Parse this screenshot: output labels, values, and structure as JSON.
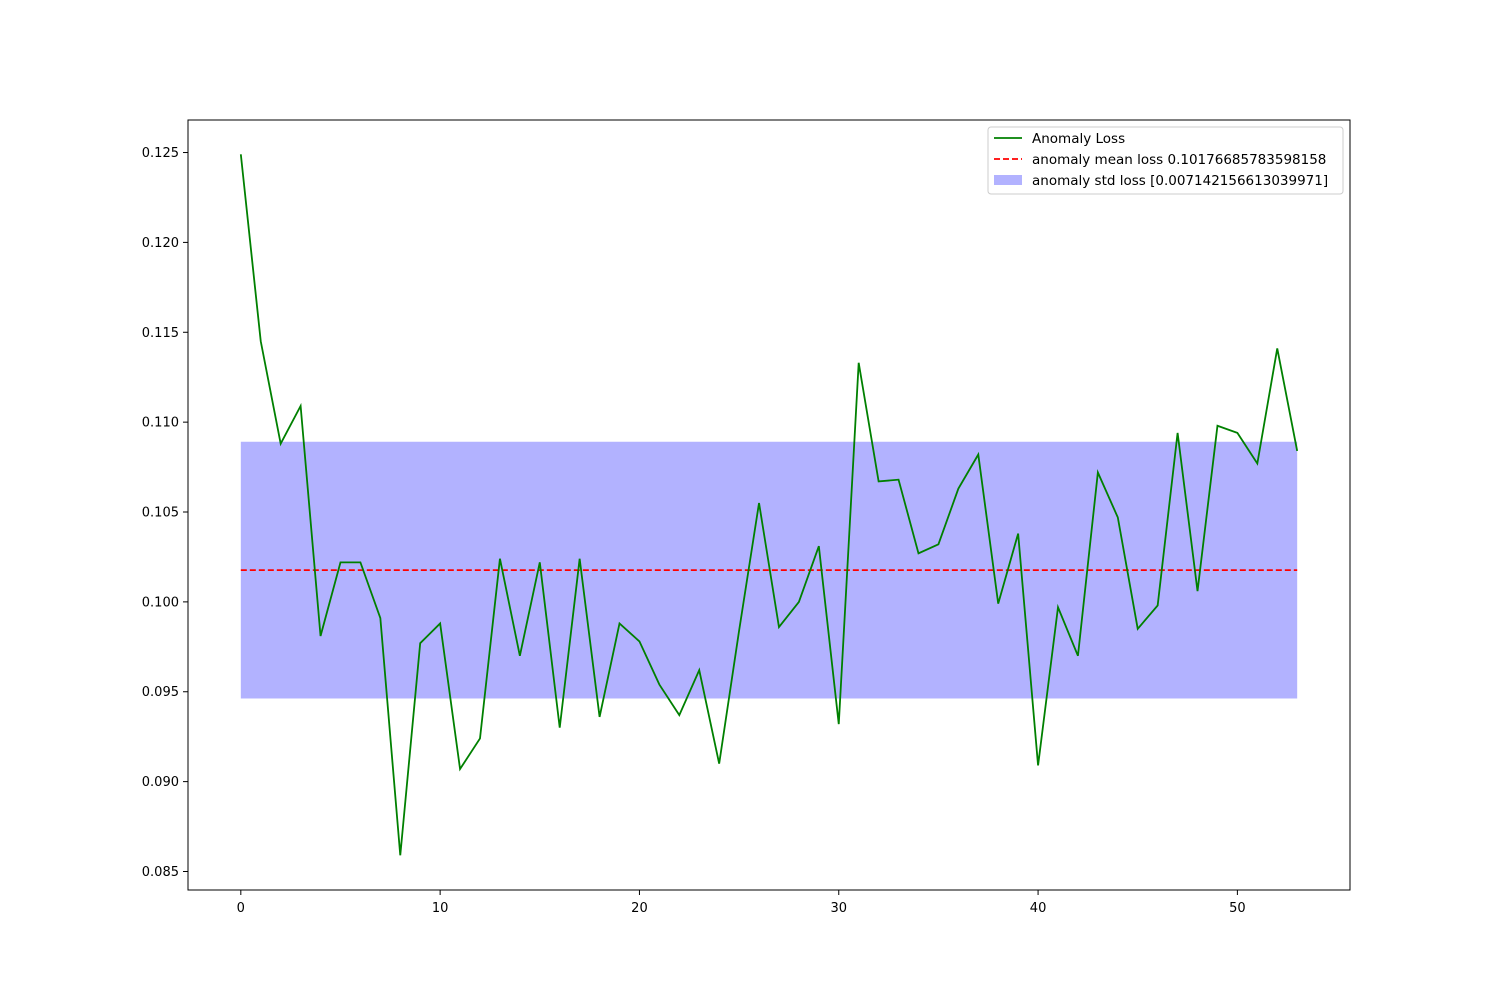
{
  "chart_data": {
    "type": "line",
    "title": "",
    "xlabel": "",
    "ylabel": "",
    "xlim": [
      -2.65,
      55.65
    ],
    "ylim": [
      0.08397,
      0.12681
    ],
    "xticks": [
      0,
      10,
      20,
      30,
      40,
      50
    ],
    "xtick_labels": [
      "0",
      "10",
      "20",
      "30",
      "40",
      "50"
    ],
    "yticks": [
      0.085,
      0.09,
      0.095,
      0.1,
      0.105,
      0.11,
      0.115,
      0.12,
      0.125
    ],
    "ytick_labels": [
      "0.085",
      "0.090",
      "0.095",
      "0.100",
      "0.105",
      "0.110",
      "0.115",
      "0.120",
      "0.125"
    ],
    "grid": false,
    "legend_position": "top-right",
    "series": [
      {
        "name": "Anomaly Loss",
        "kind": "line",
        "color": "#008000",
        "x": [
          0,
          1,
          2,
          3,
          4,
          5,
          6,
          7,
          8,
          9,
          10,
          11,
          12,
          13,
          14,
          15,
          16,
          17,
          18,
          19,
          20,
          21,
          22,
          23,
          24,
          25,
          26,
          27,
          28,
          29,
          30,
          31,
          32,
          33,
          34,
          35,
          36,
          37,
          38,
          39,
          40,
          41,
          42,
          43,
          44,
          45,
          46,
          47,
          48,
          49,
          50,
          51,
          52,
          53
        ],
        "values": [
          0.1249,
          0.1145,
          0.1088,
          0.1109,
          0.0981,
          0.1022,
          0.1022,
          0.0991,
          0.0859,
          0.0977,
          0.0988,
          0.0907,
          0.0924,
          0.1024,
          0.097,
          0.1022,
          0.093,
          0.1024,
          0.0936,
          0.0988,
          0.0978,
          0.0954,
          0.0937,
          0.0962,
          0.091,
          0.0984,
          0.1055,
          0.0986,
          0.1,
          0.1031,
          0.0932,
          0.1133,
          0.1067,
          0.1068,
          0.1027,
          0.1032,
          0.1063,
          0.1082,
          0.0999,
          0.1038,
          0.0909,
          0.0997,
          0.097,
          0.1072,
          0.1047,
          0.0985,
          0.0998,
          0.1094,
          0.1006,
          0.1098,
          0.1094,
          0.1077,
          0.1141,
          0.1084
        ]
      },
      {
        "name": "anomaly mean loss 0.10176685783598158",
        "kind": "hline",
        "style": "dashed",
        "color": "#ff0000",
        "y": 0.10176685783598158,
        "x_range": [
          0,
          53
        ]
      },
      {
        "name": "anomaly std loss [0.007142156613039971]",
        "kind": "band",
        "color": "#0000ff",
        "opacity": 0.3,
        "y_range": [
          0.09462470122294162,
          0.10890901444902155
        ],
        "x_range": [
          0,
          53
        ]
      }
    ]
  }
}
